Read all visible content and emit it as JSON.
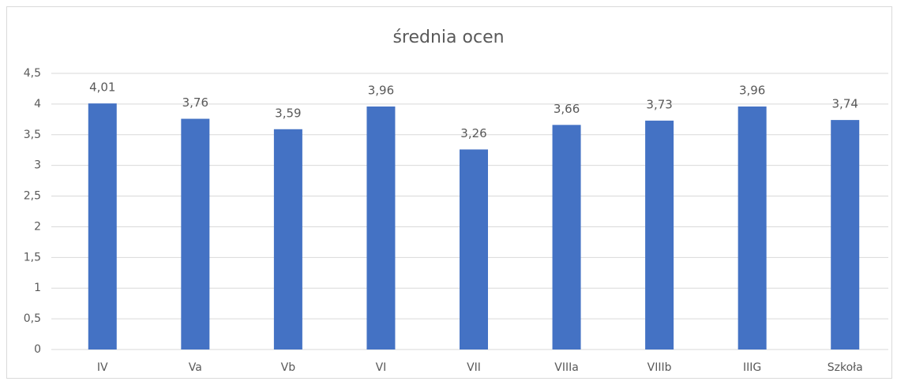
{
  "chart_data": {
    "type": "bar",
    "title": "średnia ocen",
    "categories": [
      "IV",
      "Va",
      "Vb",
      "VI",
      "VII",
      "VIIIa",
      "VIIIb",
      "IIIG",
      "Szkoła"
    ],
    "values": [
      4.01,
      3.76,
      3.59,
      3.96,
      3.26,
      3.66,
      3.73,
      3.96,
      3.74
    ],
    "value_labels": [
      "4,01",
      "3,76",
      "3,59",
      "3,96",
      "3,26",
      "3,66",
      "3,73",
      "3,96",
      "3,74"
    ],
    "color": "#4472c4",
    "ylim": [
      0,
      4.5
    ],
    "yticks": [
      0,
      {
        "value": 0.5,
        "label": "0,5"
      },
      1,
      {
        "value": 1.5,
        "label": "1,5"
      },
      2,
      {
        "value": 2.5,
        "label": "2,5"
      },
      3,
      {
        "value": 3.5,
        "label": "3,5"
      },
      4,
      {
        "value": 4.5,
        "label": "4,5"
      }
    ],
    "grid": true
  }
}
